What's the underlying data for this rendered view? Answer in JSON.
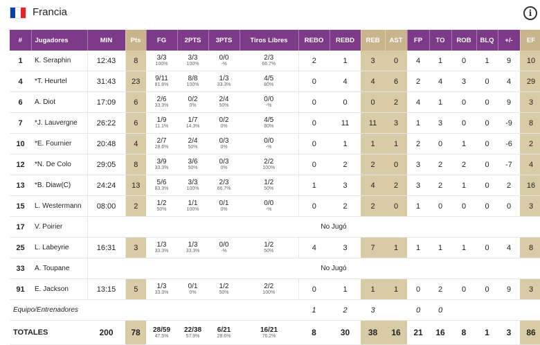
{
  "team": {
    "name": "Francia",
    "flag_colors": [
      "#0b3fa8",
      "#ffffff",
      "#e3242b"
    ]
  },
  "colors": {
    "header_purple": "#7c3a88",
    "highlight_gold": "#c9b58c",
    "cell_gold": "#d9cba6"
  },
  "columns": [
    "#",
    "Jugadores",
    "MIN",
    "Pts",
    "FG",
    "2PTS",
    "3PTS",
    "Tiros Libres",
    "REBO",
    "REBD",
    "REB",
    "AST",
    "FP",
    "TO",
    "ROB",
    "BLQ",
    "+/-",
    "EF"
  ],
  "players": [
    {
      "num": "1",
      "name": "K. Seraphin",
      "min": "12:43",
      "pts": "8",
      "fg": "3/3",
      "fg_pct": "100%",
      "p2": "3/3",
      "p2_pct": "100%",
      "p3": "0/0",
      "p3_pct": "-%",
      "ft": "2/3",
      "ft_pct": "66.7%",
      "rebo": "2",
      "rebd": "1",
      "reb": "3",
      "ast": "0",
      "fp": "4",
      "to": "1",
      "rob": "0",
      "blq": "1",
      "pm": "9",
      "ef": "10"
    },
    {
      "num": "4",
      "name": "*T. Heurtel",
      "min": "31:43",
      "pts": "23",
      "fg": "9/11",
      "fg_pct": "81.8%",
      "p2": "8/8",
      "p2_pct": "100%",
      "p3": "1/3",
      "p3_pct": "33.3%",
      "ft": "4/5",
      "ft_pct": "80%",
      "rebo": "0",
      "rebd": "4",
      "reb": "4",
      "ast": "6",
      "fp": "2",
      "to": "4",
      "rob": "3",
      "blq": "0",
      "pm": "4",
      "ef": "29"
    },
    {
      "num": "6",
      "name": "A. Diot",
      "min": "17:09",
      "pts": "6",
      "fg": "2/6",
      "fg_pct": "33.3%",
      "p2": "0/2",
      "p2_pct": "0%",
      "p3": "2/4",
      "p3_pct": "50%",
      "ft": "0/0",
      "ft_pct": "-%",
      "rebo": "0",
      "rebd": "0",
      "reb": "0",
      "ast": "2",
      "fp": "4",
      "to": "1",
      "rob": "0",
      "blq": "0",
      "pm": "9",
      "ef": "3"
    },
    {
      "num": "7",
      "name": "*J. Lauvergne",
      "min": "26:22",
      "pts": "6",
      "fg": "1/9",
      "fg_pct": "11.1%",
      "p2": "1/7",
      "p2_pct": "14.3%",
      "p3": "0/2",
      "p3_pct": "0%",
      "ft": "4/5",
      "ft_pct": "80%",
      "rebo": "0",
      "rebd": "11",
      "reb": "11",
      "ast": "3",
      "fp": "1",
      "to": "3",
      "rob": "0",
      "blq": "0",
      "pm": "-9",
      "ef": "8"
    },
    {
      "num": "10",
      "name": "*E. Fournier",
      "min": "20:48",
      "pts": "4",
      "fg": "2/7",
      "fg_pct": "28.6%",
      "p2": "2/4",
      "p2_pct": "50%",
      "p3": "0/3",
      "p3_pct": "0%",
      "ft": "0/0",
      "ft_pct": "-%",
      "rebo": "0",
      "rebd": "1",
      "reb": "1",
      "ast": "1",
      "fp": "2",
      "to": "0",
      "rob": "1",
      "blq": "0",
      "pm": "-6",
      "ef": "2"
    },
    {
      "num": "12",
      "name": "*N. De Colo",
      "min": "29:05",
      "pts": "8",
      "fg": "3/9",
      "fg_pct": "33.3%",
      "p2": "3/6",
      "p2_pct": "50%",
      "p3": "0/3",
      "p3_pct": "0%",
      "ft": "2/2",
      "ft_pct": "100%",
      "rebo": "0",
      "rebd": "2",
      "reb": "2",
      "ast": "0",
      "fp": "3",
      "to": "2",
      "rob": "2",
      "blq": "0",
      "pm": "-7",
      "ef": "4"
    },
    {
      "num": "13",
      "name": "*B. Diaw(C)",
      "min": "24:24",
      "pts": "13",
      "fg": "5/6",
      "fg_pct": "83.3%",
      "p2": "3/3",
      "p2_pct": "100%",
      "p3": "2/3",
      "p3_pct": "66.7%",
      "ft": "1/2",
      "ft_pct": "50%",
      "rebo": "1",
      "rebd": "3",
      "reb": "4",
      "ast": "2",
      "fp": "3",
      "to": "2",
      "rob": "1",
      "blq": "0",
      "pm": "2",
      "ef": "16"
    },
    {
      "num": "15",
      "name": "L. Westermann",
      "min": "08:00",
      "pts": "2",
      "fg": "1/2",
      "fg_pct": "50%",
      "p2": "1/1",
      "p2_pct": "100%",
      "p3": "0/1",
      "p3_pct": "0%",
      "ft": "0/0",
      "ft_pct": "-%",
      "rebo": "0",
      "rebd": "2",
      "reb": "2",
      "ast": "0",
      "fp": "1",
      "to": "0",
      "rob": "0",
      "blq": "0",
      "pm": "0",
      "ef": "3"
    },
    {
      "num": "17",
      "name": "V. Poirier",
      "nojugo": "No Jugó"
    },
    {
      "num": "25",
      "name": "L. Labeyrie",
      "min": "16:31",
      "pts": "3",
      "fg": "1/3",
      "fg_pct": "33.3%",
      "p2": "1/3",
      "p2_pct": "33.3%",
      "p3": "0/0",
      "p3_pct": "-%",
      "ft": "1/2",
      "ft_pct": "50%",
      "rebo": "4",
      "rebd": "3",
      "reb": "7",
      "ast": "1",
      "fp": "1",
      "to": "1",
      "rob": "1",
      "blq": "0",
      "pm": "4",
      "ef": "8"
    },
    {
      "num": "33",
      "name": "A. Toupane",
      "nojugo": "No Jugó"
    },
    {
      "num": "91",
      "name": "E. Jackson",
      "min": "13:15",
      "pts": "5",
      "fg": "1/3",
      "fg_pct": "33.3%",
      "p2": "0/1",
      "p2_pct": "0%",
      "p3": "1/2",
      "p3_pct": "50%",
      "ft": "2/2",
      "ft_pct": "100%",
      "rebo": "0",
      "rebd": "1",
      "reb": "1",
      "ast": "1",
      "fp": "0",
      "to": "2",
      "rob": "0",
      "blq": "0",
      "pm": "9",
      "ef": "3"
    }
  ],
  "team_row": {
    "label": "Equipo/Entrenadores",
    "rebo": "1",
    "rebd": "2",
    "reb": "3",
    "fp": "0",
    "to": "0"
  },
  "totals": {
    "label": "TOTALES",
    "min": "200",
    "pts": "78",
    "fg": "28/59",
    "fg_pct": "47.5%",
    "p2": "22/38",
    "p2_pct": "57.9%",
    "p3": "6/21",
    "p3_pct": "28.6%",
    "ft": "16/21",
    "ft_pct": "76.2%",
    "rebo": "8",
    "rebd": "30",
    "reb": "38",
    "ast": "16",
    "fp": "21",
    "to": "16",
    "rob": "8",
    "blq": "1",
    "pm": "3",
    "ef": "86"
  }
}
